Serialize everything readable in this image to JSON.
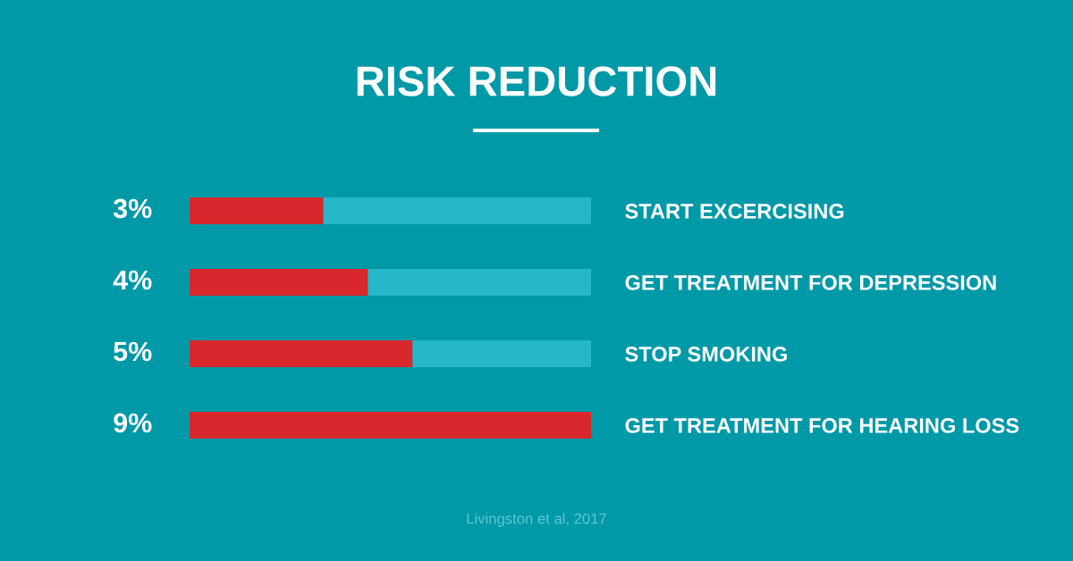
{
  "chart_data": {
    "type": "bar",
    "orientation": "horizontal",
    "stacked": true,
    "title": "RISK REDUCTION",
    "categories": [
      "START EXCERCISING",
      "GET TREATMENT FOR DEPRESSION",
      "STOP SMOKING",
      "GET TREATMENT FOR HEARING LOSS"
    ],
    "series": [
      {
        "color": "#d9272e",
        "values": [
          3,
          4,
          5,
          9
        ],
        "value_labels": [
          "3%",
          "4%",
          "5%",
          "9%"
        ]
      },
      {
        "color": "#26b8c8",
        "values": [
          6,
          5,
          4,
          0
        ]
      }
    ],
    "xlim": [
      0,
      9
    ],
    "tick_labels": "y",
    "grid": false,
    "legend": false,
    "annotations": [
      "Livingston et al, 2017"
    ]
  }
}
